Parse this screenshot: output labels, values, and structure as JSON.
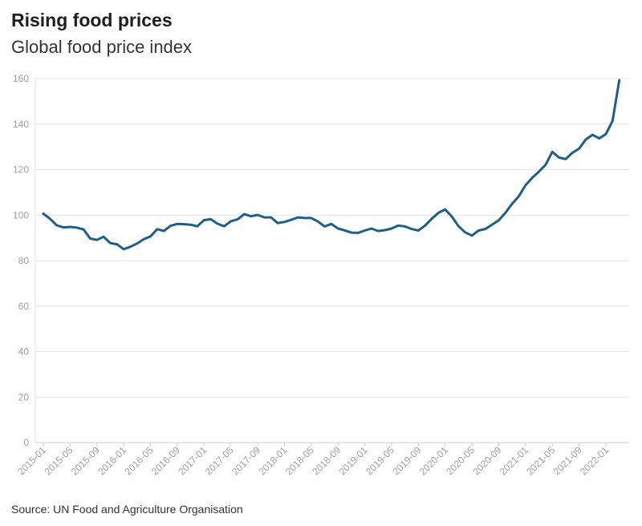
{
  "title": "Rising food prices",
  "subtitle": "Global food price index",
  "source": "Source: UN Food and Agriculture Organisation",
  "chart_data": {
    "type": "line",
    "title": "Rising food prices",
    "subtitle": "Global food price index",
    "xlabel": "",
    "ylabel": "",
    "ylim": [
      0,
      160
    ],
    "yticks": [
      0,
      20,
      40,
      60,
      80,
      100,
      120,
      140,
      160
    ],
    "grid": true,
    "legend": "none",
    "line_color": "#1d5f8a",
    "xticks": [
      "2015-01",
      "2015-05",
      "2015-09",
      "2016-01",
      "2016-05",
      "2016-09",
      "2017-01",
      "2017-05",
      "2017-09",
      "2018-01",
      "2018-05",
      "2018-09",
      "2019-01",
      "2019-05",
      "2019-09",
      "2020-01",
      "2020-05",
      "2020-09",
      "2021-01",
      "2021-05",
      "2021-09",
      "2022-01"
    ],
    "x_start": "2015-01",
    "x": [
      "2015-01",
      "2015-02",
      "2015-03",
      "2015-04",
      "2015-05",
      "2015-06",
      "2015-07",
      "2015-08",
      "2015-09",
      "2015-10",
      "2015-11",
      "2015-12",
      "2016-01",
      "2016-02",
      "2016-03",
      "2016-04",
      "2016-05",
      "2016-06",
      "2016-07",
      "2016-08",
      "2016-09",
      "2016-10",
      "2016-11",
      "2016-12",
      "2017-01",
      "2017-02",
      "2017-03",
      "2017-04",
      "2017-05",
      "2017-06",
      "2017-07",
      "2017-08",
      "2017-09",
      "2017-10",
      "2017-11",
      "2017-12",
      "2018-01",
      "2018-02",
      "2018-03",
      "2018-04",
      "2018-05",
      "2018-06",
      "2018-07",
      "2018-08",
      "2018-09",
      "2018-10",
      "2018-11",
      "2018-12",
      "2019-01",
      "2019-02",
      "2019-03",
      "2019-04",
      "2019-05",
      "2019-06",
      "2019-07",
      "2019-08",
      "2019-09",
      "2019-10",
      "2019-11",
      "2019-12",
      "2020-01",
      "2020-02",
      "2020-03",
      "2020-04",
      "2020-05",
      "2020-06",
      "2020-07",
      "2020-08",
      "2020-09",
      "2020-10",
      "2020-11",
      "2020-12",
      "2021-01",
      "2021-02",
      "2021-03",
      "2021-04",
      "2021-05",
      "2021-06",
      "2021-07",
      "2021-08",
      "2021-09",
      "2021-10",
      "2021-11",
      "2021-12",
      "2022-01",
      "2022-02",
      "2022-03"
    ],
    "series": [
      {
        "values": [
          100.6,
          98.4,
          95.5,
          94.6,
          94.8,
          94.5,
          93.7,
          89.7,
          89.1,
          90.5,
          87.7,
          87.2,
          85.0,
          86.1,
          87.5,
          89.4,
          90.6,
          93.8,
          93.0,
          95.3,
          96.1,
          96.0,
          95.8,
          95.1,
          97.8,
          98.2,
          96.2,
          95.1,
          97.3,
          98.1,
          100.4,
          99.5,
          100.1,
          99.0,
          99.0,
          96.5,
          97.0,
          97.9,
          99.0,
          98.7,
          98.7,
          97.2,
          95.0,
          96.1,
          94.1,
          93.3,
          92.3,
          92.2,
          93.2,
          94.1,
          93.0,
          93.4,
          94.1,
          95.4,
          95.0,
          93.9,
          93.2,
          95.4,
          98.4,
          101.0,
          102.5,
          99.4,
          95.1,
          92.4,
          91.0,
          93.2,
          93.9,
          95.8,
          97.7,
          101.0,
          105.0,
          108.3,
          113.1,
          116.4,
          119.1,
          122.1,
          127.8,
          125.3,
          124.6,
          127.4,
          129.2,
          133.2,
          135.3,
          133.7,
          135.6,
          141.4,
          159.3
        ]
      }
    ]
  }
}
